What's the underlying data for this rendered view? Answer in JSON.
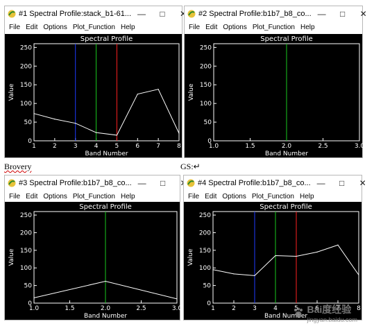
{
  "windows": [
    {
      "title": "#1 Spectral Profile:stack_b1-61...",
      "menu": [
        "File",
        "Edit",
        "Options",
        "Plot_Function",
        "Help"
      ],
      "chart": {
        "type": "line",
        "title": "Spectral Profile",
        "xlabel": "Band Number",
        "ylabel": "Value",
        "xlim": [
          1,
          8
        ],
        "ylim": [
          0,
          260
        ],
        "xticks": [
          "1",
          "2",
          "3",
          "4",
          "5",
          "6",
          "7",
          "8"
        ],
        "yticks": [
          "0",
          "50",
          "100",
          "150",
          "200",
          "250"
        ],
        "x": [
          1,
          2,
          3,
          4,
          5,
          6,
          7,
          8
        ],
        "y": [
          73,
          58,
          47,
          22,
          15,
          125,
          138,
          20
        ],
        "markers": [
          {
            "x": 3,
            "color": "#1f3cff"
          },
          {
            "x": 4,
            "color": "#19c81e"
          },
          {
            "x": 5,
            "color": "#ff2020"
          }
        ]
      }
    },
    {
      "title": "#2 Spectral Profile:b1b7_b8_co...",
      "menu": [
        "File",
        "Edit",
        "Options",
        "Plot_Function",
        "Help"
      ],
      "chart": {
        "type": "line",
        "title": "Spectral Profile",
        "xlabel": "Band Number",
        "ylabel": "Value",
        "xlim": [
          1,
          3
        ],
        "ylim": [
          0,
          260
        ],
        "xticks": [
          "1.0",
          "1.5",
          "2.0",
          "2.5",
          "3.0"
        ],
        "yticks": [
          "0",
          "50",
          "100",
          "150",
          "200",
          "250"
        ],
        "x": [],
        "y": [],
        "markers": [
          {
            "x": 2,
            "color": "#19c81e"
          }
        ]
      }
    },
    {
      "title": "#3 Spectral Profile:b1b7_b8_co...",
      "menu": [
        "File",
        "Edit",
        "Options",
        "Plot_Function",
        "Help"
      ],
      "chart": {
        "type": "line",
        "title": "Spectral Profile",
        "xlabel": "Band Number",
        "ylabel": "Value",
        "xlim": [
          1,
          3
        ],
        "ylim": [
          0,
          260
        ],
        "xticks": [
          "1.0",
          "1.5",
          "2.0",
          "2.5",
          "3.0"
        ],
        "yticks": [
          "0",
          "50",
          "100",
          "150",
          "200",
          "250"
        ],
        "x": [
          1,
          2,
          3
        ],
        "y": [
          15,
          62,
          12
        ],
        "markers": [
          {
            "x": 2,
            "color": "#19c81e"
          }
        ]
      }
    },
    {
      "title": "#4 Spectral Profile:b1b7_b8_co...",
      "menu": [
        "File",
        "Edit",
        "Options",
        "Plot_Function",
        "Help"
      ],
      "chart": {
        "type": "line",
        "title": "Spectral Profile",
        "xlabel": "Band Number",
        "ylabel": "Value",
        "xlim": [
          1,
          8
        ],
        "ylim": [
          0,
          260
        ],
        "xticks": [
          "1",
          "2",
          "3",
          "4",
          "5",
          "6",
          "7",
          "8"
        ],
        "yticks": [
          "0",
          "50",
          "100",
          "150",
          "200",
          "250"
        ],
        "x": [
          1,
          2,
          3,
          4,
          5,
          6,
          7,
          8
        ],
        "y": [
          95,
          83,
          78,
          135,
          133,
          145,
          165,
          80
        ],
        "markers": [
          {
            "x": 3,
            "color": "#1f3cff"
          },
          {
            "x": 4,
            "color": "#19c81e"
          },
          {
            "x": 5,
            "color": "#ff2020"
          }
        ]
      }
    }
  ],
  "captions": {
    "left": "Brovery",
    "right": "GS:↵"
  },
  "window_controls": {
    "minimize": "—",
    "maximize": "□",
    "close": "✕"
  },
  "watermark": {
    "brand": "Bai度经验",
    "sub": "jingyan.baidu.com"
  },
  "colors": {
    "plot_bg": "#000000",
    "curve": "#ffffff",
    "axes": "#ffffff"
  }
}
